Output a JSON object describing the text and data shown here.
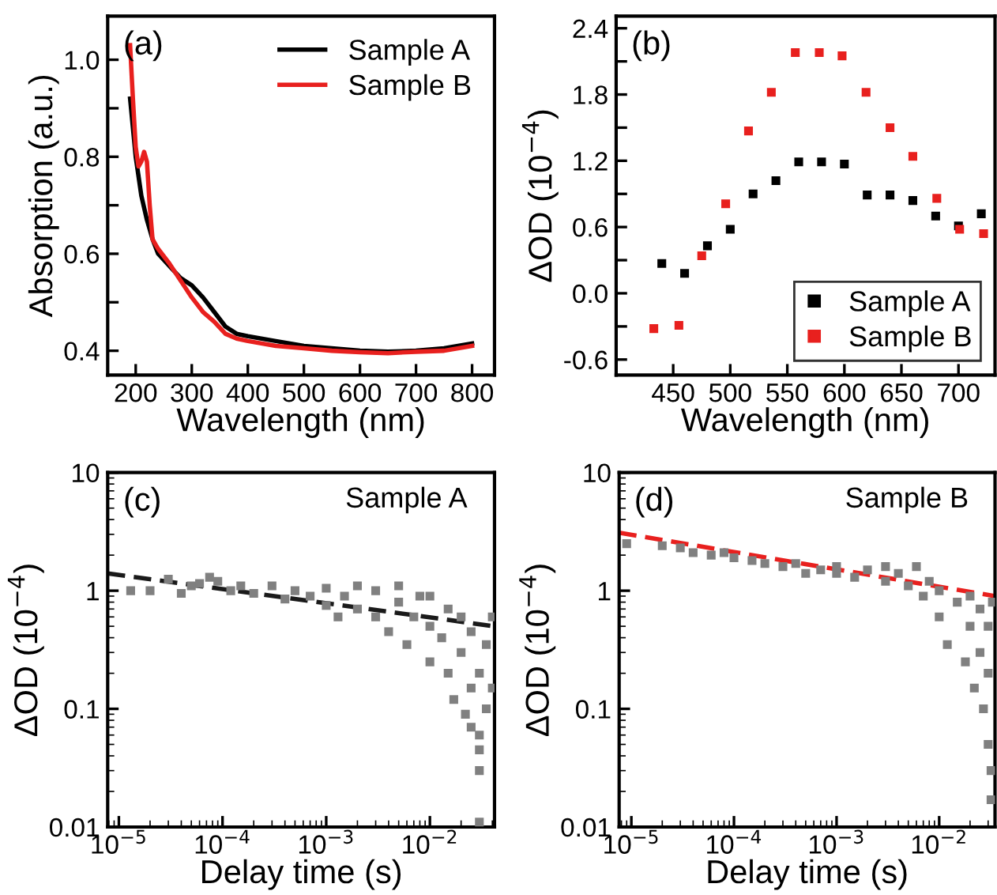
{
  "chart_data": [
    {
      "type": "line",
      "xlabel": "Wavelength (nm)",
      "ylabel": "Absorption (a.u.)",
      "annotations": [
        "(a)"
      ],
      "xlim": [
        150,
        840
      ],
      "ylim": [
        0.35,
        1.09
      ],
      "xticks": [
        200,
        300,
        400,
        500,
        600,
        700,
        800
      ],
      "yticks": [
        0.4,
        {
          "value": 0.5,
          "label": null
        },
        0.6,
        {
          "value": 0.7,
          "label": null
        },
        0.8,
        {
          "value": 0.9,
          "label": null
        },
        {
          "value": 1.0,
          "label": "1.0"
        }
      ],
      "legend": "top right",
      "grid": false,
      "line_style": "solid",
      "marker": "none",
      "series": [
        {
          "name": "Sample A",
          "color": "#000000",
          "x": [
            190,
            200,
            210,
            220,
            230,
            240,
            260,
            280,
            300,
            320,
            340,
            360,
            380,
            400,
            450,
            500,
            550,
            600,
            650,
            700,
            750,
            800
          ],
          "values": [
            0.92,
            0.8,
            0.72,
            0.67,
            0.63,
            0.6,
            0.575,
            0.55,
            0.535,
            0.51,
            0.48,
            0.45,
            0.435,
            0.43,
            0.42,
            0.41,
            0.405,
            0.4,
            0.398,
            0.4,
            0.405,
            0.415
          ]
        },
        {
          "name": "Sample B",
          "color": "#e8201e",
          "x": [
            190,
            195,
            200,
            205,
            210,
            215,
            220,
            225,
            230,
            240,
            260,
            280,
            300,
            320,
            340,
            360,
            380,
            400,
            450,
            500,
            550,
            600,
            650,
            700,
            750,
            800
          ],
          "values": [
            1.03,
            0.92,
            0.82,
            0.78,
            0.79,
            0.81,
            0.79,
            0.7,
            0.63,
            0.61,
            0.58,
            0.545,
            0.51,
            0.48,
            0.46,
            0.435,
            0.425,
            0.42,
            0.41,
            0.405,
            0.4,
            0.397,
            0.395,
            0.398,
            0.4,
            0.41
          ]
        }
      ]
    },
    {
      "type": "scatter",
      "xlabel": "Wavelength (nm)",
      "ylabel": "ΔOD (10$^{−4}$)",
      "annotations": [
        "(b)"
      ],
      "xlim": [
        400,
        732
      ],
      "ylim": [
        -0.74,
        2.51
      ],
      "xticks": [
        450,
        500,
        550,
        600,
        650,
        700
      ],
      "yticks": [
        -0.6,
        {
          "value": -0.3,
          "label": null
        },
        {
          "value": 0.0,
          "label": "0.0"
        },
        {
          "value": 0.3,
          "label": null
        },
        0.6,
        {
          "value": 0.9,
          "label": null
        },
        1.2,
        {
          "value": 1.5,
          "label": null
        },
        1.8,
        {
          "value": 2.1,
          "label": null
        },
        2.4
      ],
      "legend": "bottom right",
      "grid": false,
      "marker": "square",
      "series": [
        {
          "name": "Sample A",
          "color": "#000000",
          "x": [
            440,
            460,
            480,
            500,
            520,
            540,
            560,
            580,
            600,
            620,
            640,
            660,
            680,
            700,
            720
          ],
          "values": [
            0.27,
            0.18,
            0.43,
            0.58,
            0.9,
            1.02,
            1.19,
            1.19,
            1.17,
            0.89,
            0.89,
            0.84,
            0.7,
            0.61,
            0.72
          ]
        },
        {
          "name": "Sample B",
          "color": "#e8201e",
          "x": [
            433,
            455,
            475,
            496,
            516,
            536,
            557,
            578,
            598,
            619,
            640,
            660,
            681,
            701,
            722
          ],
          "values": [
            -0.32,
            -0.29,
            0.34,
            0.81,
            1.47,
            1.82,
            2.18,
            2.18,
            2.15,
            1.82,
            1.5,
            1.24,
            0.86,
            0.58,
            0.54
          ]
        }
      ]
    },
    {
      "type": "scatter",
      "xlabel": "Delay time (s)",
      "ylabel": "ΔOD (10$^{−4}$)",
      "annotations": [
        "(c)",
        "Sample A"
      ],
      "log": "xy",
      "xlim": [
        7.8e-06,
        0.042
      ],
      "ylim": [
        0.01,
        10
      ],
      "xticks": [
        {
          "value": 1e-05,
          "label": "10$^{−5}$"
        },
        {
          "value": 0.0001,
          "label": "10$^{−4}$"
        },
        {
          "value": 0.001,
          "label": "10$^{−3}$"
        },
        {
          "value": 0.01,
          "label": "10$^{−2}$"
        }
      ],
      "yticks": [
        0.01,
        0.1,
        1,
        10
      ],
      "legend": false,
      "grid": false,
      "marker": "square",
      "series": [
        {
          "color": "#808080",
          "x": [
            1.3e-05,
            2e-05,
            3e-05,
            4e-05,
            5e-05,
            6e-05,
            7.5e-05,
            9e-05,
            0.00012,
            0.00015,
            0.0002,
            0.0003,
            0.0004,
            0.0005,
            0.0007,
            0.001,
            0.001,
            0.0013,
            0.0015,
            0.002,
            0.002,
            0.003,
            0.003,
            0.004,
            0.005,
            0.005,
            0.006,
            0.007,
            0.008,
            0.01,
            0.01,
            0.01,
            0.013,
            0.015,
            0.015,
            0.017,
            0.02,
            0.02,
            0.022,
            0.025,
            0.025,
            0.025,
            0.03,
            0.03,
            0.03,
            0.03,
            0.035,
            0.035,
            0.04,
            0.04,
            0.03
          ],
          "values": [
            1.0,
            1.0,
            1.25,
            0.95,
            1.1,
            1.15,
            1.3,
            1.2,
            1.0,
            1.1,
            0.95,
            1.1,
            0.85,
            1.0,
            0.9,
            0.75,
            1.05,
            0.6,
            0.9,
            0.7,
            1.1,
            0.6,
            1.0,
            0.45,
            0.8,
            1.1,
            0.35,
            0.6,
            0.9,
            0.25,
            0.5,
            0.9,
            0.4,
            0.2,
            0.7,
            0.12,
            0.3,
            0.6,
            0.09,
            0.15,
            0.45,
            0.07,
            0.2,
            0.06,
            0.045,
            0.03,
            0.1,
            0.35,
            0.15,
            0.6,
            0.011
          ]
        },
        {
          "type": "line",
          "line_style": "dashed",
          "marker": "none",
          "color": "#1a1a1a",
          "x": [
            7.8e-06,
            0.042
          ],
          "values": [
            1.4,
            0.5
          ]
        }
      ]
    },
    {
      "type": "scatter",
      "xlabel": "Delay time (s)",
      "ylabel": "ΔOD (10$^{−4}$)",
      "annotations": [
        "(d)",
        "Sample B"
      ],
      "log": "xy",
      "xlim": [
        7.6e-06,
        0.035
      ],
      "ylim": [
        0.01,
        10
      ],
      "xticks": [
        {
          "value": 1e-05,
          "label": "10$^{−5}$"
        },
        {
          "value": 0.0001,
          "label": "10$^{−4}$"
        },
        {
          "value": 0.001,
          "label": "10$^{−3}$"
        },
        {
          "value": 0.01,
          "label": "10$^{−2}$"
        }
      ],
      "yticks": [
        0.01,
        0.1,
        1,
        10
      ],
      "legend": false,
      "grid": false,
      "marker": "square",
      "series": [
        {
          "color": "#808080",
          "x": [
            9e-06,
            2e-05,
            3e-05,
            4e-05,
            6e-05,
            8e-05,
            0.0001,
            0.00015,
            0.0002,
            0.0003,
            0.0004,
            0.0005,
            0.0007,
            0.001,
            0.001,
            0.0015,
            0.002,
            0.003,
            0.003,
            0.004,
            0.005,
            0.006,
            0.007,
            0.008,
            0.01,
            0.01,
            0.012,
            0.015,
            0.018,
            0.02,
            0.02,
            0.022,
            0.025,
            0.025,
            0.027,
            0.03,
            0.03,
            0.03,
            0.032,
            0.032,
            0.033
          ],
          "values": [
            2.5,
            2.4,
            2.3,
            2.1,
            2.0,
            2.1,
            1.9,
            1.8,
            1.7,
            1.6,
            1.7,
            1.4,
            1.5,
            1.4,
            1.6,
            1.3,
            1.5,
            1.2,
            1.6,
            1.4,
            1.1,
            1.6,
            0.9,
            1.2,
            0.6,
            1.0,
            0.35,
            0.8,
            0.25,
            0.5,
            0.9,
            0.15,
            0.3,
            0.7,
            0.1,
            0.05,
            0.2,
            0.5,
            0.03,
            0.017,
            0.8
          ]
        },
        {
          "type": "line",
          "line_style": "dashed",
          "marker": "none",
          "color": "#e8201e",
          "x": [
            7.6e-06,
            0.035
          ],
          "values": [
            3.1,
            0.9
          ]
        }
      ]
    }
  ]
}
